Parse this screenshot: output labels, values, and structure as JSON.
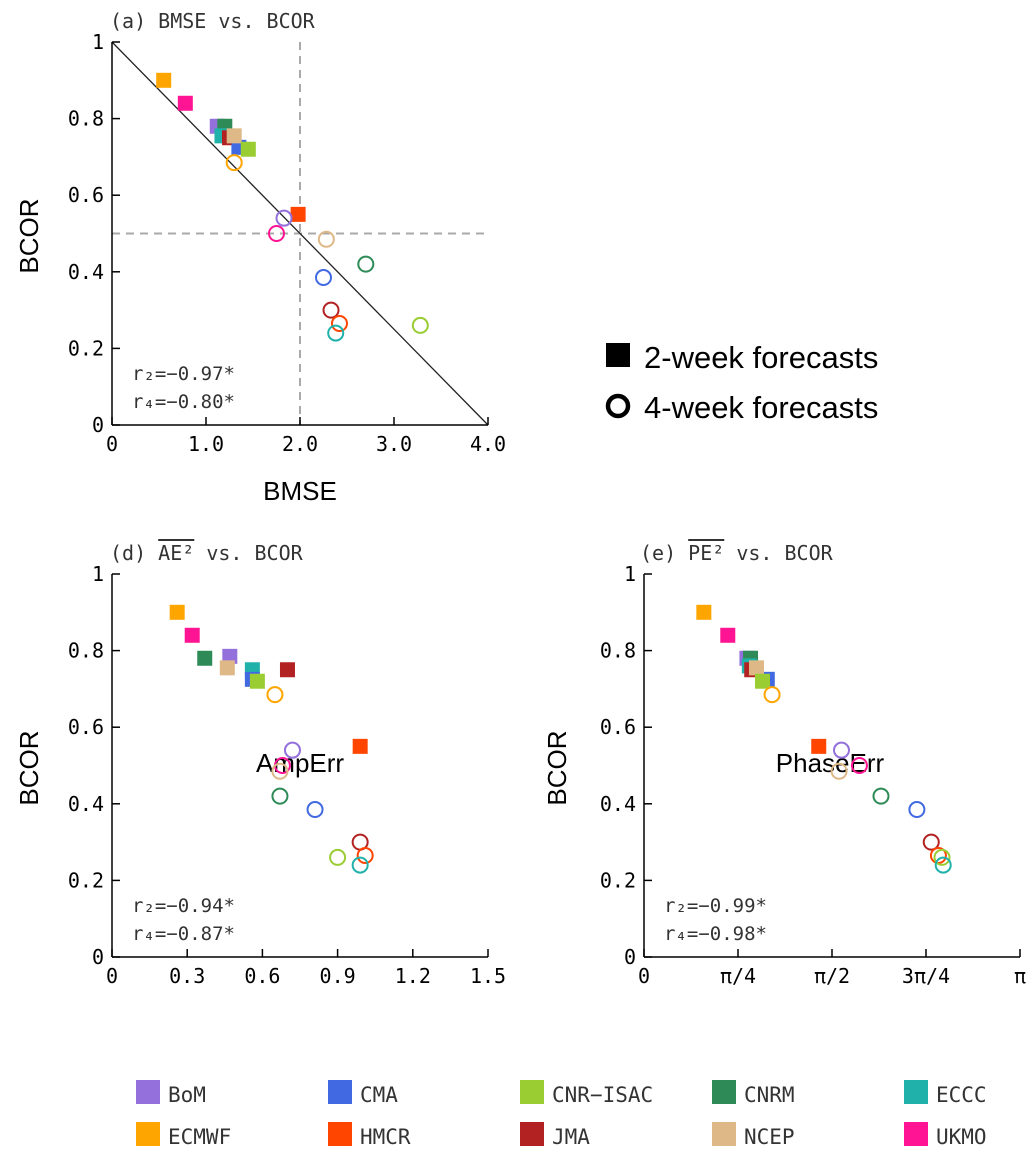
{
  "colors": {
    "BoM": "#9370DB",
    "CMA": "#4169E1",
    "CNR-ISAC": "#9ACD32",
    "CNRM": "#2E8B57",
    "ECCC": "#20B2AA",
    "ECMWF": "#FFA500",
    "HMCR": "#FF4500",
    "JMA": "#B22222",
    "NCEP": "#DEB887",
    "UKMO": "#FF1493"
  },
  "legend": {
    "markers": {
      "two_week": "2-week forecasts",
      "four_week": "4-week forecasts"
    },
    "models": [
      "BoM",
      "CMA",
      "CNR−ISAC",
      "CNRM",
      "ECCC",
      "ECMWF",
      "HMCR",
      "JMA",
      "NCEP",
      "UKMO"
    ],
    "model_keys": [
      "BoM",
      "CMA",
      "CNR-ISAC",
      "CNRM",
      "ECCC",
      "ECMWF",
      "HMCR",
      "JMA",
      "NCEP",
      "UKMO"
    ]
  },
  "chart_data": [
    {
      "id": "a",
      "type": "scatter",
      "title": "(a) BMSE vs. BCOR",
      "xlabel": "BMSE",
      "ylabel": "BCOR",
      "xlim": [
        0,
        4
      ],
      "ylim": [
        0,
        1
      ],
      "xticks": [
        0,
        1,
        2,
        3,
        4
      ],
      "xtick_labels": [
        "0",
        "1.0",
        "2.0",
        "3.0",
        "4.0"
      ],
      "yticks": [
        0,
        0.2,
        0.4,
        0.6,
        0.8,
        1
      ],
      "ytick_labels": [
        "0",
        "0.2",
        "0.4",
        "0.6",
        "0.8",
        "1"
      ],
      "reference_lines": {
        "diagonal": true,
        "vline_x": 2.0,
        "hline_y": 0.5
      },
      "stats": {
        "r2": "r₂=−0.97*",
        "r4": "r₄=−0.80*"
      },
      "series": [
        {
          "name": "2-week forecasts",
          "marker": "square",
          "points": [
            {
              "model": "ECMWF",
              "x": 0.55,
              "y": 0.9
            },
            {
              "model": "UKMO",
              "x": 0.78,
              "y": 0.84
            },
            {
              "model": "BoM",
              "x": 1.12,
              "y": 0.78
            },
            {
              "model": "CNRM",
              "x": 1.2,
              "y": 0.78
            },
            {
              "model": "ECCC",
              "x": 1.17,
              "y": 0.755
            },
            {
              "model": "JMA",
              "x": 1.25,
              "y": 0.75
            },
            {
              "model": "CMA",
              "x": 1.35,
              "y": 0.725
            },
            {
              "model": "NCEP",
              "x": 1.3,
              "y": 0.755
            },
            {
              "model": "CNR-ISAC",
              "x": 1.45,
              "y": 0.72
            },
            {
              "model": "HMCR",
              "x": 1.98,
              "y": 0.55
            }
          ]
        },
        {
          "name": "4-week forecasts",
          "marker": "circle",
          "points": [
            {
              "model": "ECMWF",
              "x": 1.3,
              "y": 0.685
            },
            {
              "model": "BoM",
              "x": 1.83,
              "y": 0.54
            },
            {
              "model": "UKMO",
              "x": 1.75,
              "y": 0.5
            },
            {
              "model": "NCEP",
              "x": 2.28,
              "y": 0.485
            },
            {
              "model": "CNRM",
              "x": 2.7,
              "y": 0.42
            },
            {
              "model": "CMA",
              "x": 2.25,
              "y": 0.385
            },
            {
              "model": "JMA",
              "x": 2.33,
              "y": 0.3
            },
            {
              "model": "HMCR",
              "x": 2.42,
              "y": 0.265
            },
            {
              "model": "ECCC",
              "x": 2.38,
              "y": 0.24
            },
            {
              "model": "CNR-ISAC",
              "x": 3.28,
              "y": 0.26
            }
          ]
        }
      ]
    },
    {
      "id": "d",
      "type": "scatter",
      "title": "(d) AE² vs. BCOR",
      "title_prefix": "(d) ",
      "title_overlined": "AE²",
      "title_suffix": " vs. BCOR",
      "xlabel": "AmpErr",
      "ylabel": "BCOR",
      "xlim": [
        0,
        1.5
      ],
      "ylim": [
        0,
        1
      ],
      "xticks": [
        0,
        0.3,
        0.6,
        0.9,
        1.2,
        1.5
      ],
      "xtick_labels": [
        "0",
        "0.3",
        "0.6",
        "0.9",
        "1.2",
        "1.5"
      ],
      "yticks": [
        0,
        0.2,
        0.4,
        0.6,
        0.8,
        1
      ],
      "ytick_labels": [
        "0",
        "0.2",
        "0.4",
        "0.6",
        "0.8",
        "1"
      ],
      "stats": {
        "r2": "r₂=−0.94*",
        "r4": "r₄=−0.87*"
      },
      "series": [
        {
          "name": "2-week forecasts",
          "marker": "square",
          "points": [
            {
              "model": "ECMWF",
              "x": 0.26,
              "y": 0.9
            },
            {
              "model": "UKMO",
              "x": 0.32,
              "y": 0.84
            },
            {
              "model": "CNRM",
              "x": 0.37,
              "y": 0.78
            },
            {
              "model": "BoM",
              "x": 0.47,
              "y": 0.785
            },
            {
              "model": "NCEP",
              "x": 0.46,
              "y": 0.755
            },
            {
              "model": "ECCC",
              "x": 0.56,
              "y": 0.75
            },
            {
              "model": "CMA",
              "x": 0.56,
              "y": 0.725
            },
            {
              "model": "CNR-ISAC",
              "x": 0.58,
              "y": 0.72
            },
            {
              "model": "JMA",
              "x": 0.7,
              "y": 0.75
            },
            {
              "model": "HMCR",
              "x": 0.99,
              "y": 0.55
            }
          ]
        },
        {
          "name": "4-week forecasts",
          "marker": "circle",
          "points": [
            {
              "model": "ECMWF",
              "x": 0.65,
              "y": 0.685
            },
            {
              "model": "BoM",
              "x": 0.72,
              "y": 0.54
            },
            {
              "model": "UKMO",
              "x": 0.68,
              "y": 0.5
            },
            {
              "model": "NCEP",
              "x": 0.67,
              "y": 0.485
            },
            {
              "model": "CNRM",
              "x": 0.67,
              "y": 0.42
            },
            {
              "model": "CMA",
              "x": 0.81,
              "y": 0.385
            },
            {
              "model": "CNR-ISAC",
              "x": 0.9,
              "y": 0.26
            },
            {
              "model": "JMA",
              "x": 0.99,
              "y": 0.3
            },
            {
              "model": "HMCR",
              "x": 1.01,
              "y": 0.265
            },
            {
              "model": "ECCC",
              "x": 0.99,
              "y": 0.24
            }
          ]
        }
      ]
    },
    {
      "id": "e",
      "type": "scatter",
      "title": "(e) PE² vs. BCOR",
      "title_prefix": "(e) ",
      "title_overlined": "PE²",
      "title_suffix": " vs. BCOR",
      "xlabel": "PhaseErr",
      "ylabel": "BCOR",
      "xlim": [
        0,
        3.14159
      ],
      "ylim": [
        0,
        1
      ],
      "xticks": [
        0,
        0.7854,
        1.5708,
        2.3562,
        3.14159
      ],
      "xtick_labels": [
        "0",
        "π/4",
        "π/2",
        "3π/4",
        "π"
      ],
      "yticks": [
        0,
        0.2,
        0.4,
        0.6,
        0.8,
        1
      ],
      "ytick_labels": [
        "0",
        "0.2",
        "0.4",
        "0.6",
        "0.8",
        "1"
      ],
      "stats": {
        "r2": "r₂=−0.99*",
        "r4": "r₄=−0.98*"
      },
      "series": [
        {
          "name": "2-week forecasts",
          "marker": "square",
          "points": [
            {
              "model": "ECMWF",
              "x": 0.5,
              "y": 0.9
            },
            {
              "model": "UKMO",
              "x": 0.7,
              "y": 0.84
            },
            {
              "model": "BoM",
              "x": 0.86,
              "y": 0.78
            },
            {
              "model": "CNRM",
              "x": 0.89,
              "y": 0.78
            },
            {
              "model": "ECCC",
              "x": 0.88,
              "y": 0.76
            },
            {
              "model": "JMA",
              "x": 0.9,
              "y": 0.75
            },
            {
              "model": "CMA",
              "x": 1.03,
              "y": 0.725
            },
            {
              "model": "NCEP",
              "x": 0.94,
              "y": 0.755
            },
            {
              "model": "CNR-ISAC",
              "x": 0.99,
              "y": 0.72
            },
            {
              "model": "HMCR",
              "x": 1.46,
              "y": 0.55
            }
          ]
        },
        {
          "name": "4-week forecasts",
          "marker": "circle",
          "points": [
            {
              "model": "ECMWF",
              "x": 1.07,
              "y": 0.685
            },
            {
              "model": "BoM",
              "x": 1.65,
              "y": 0.54
            },
            {
              "model": "NCEP",
              "x": 1.63,
              "y": 0.485
            },
            {
              "model": "UKMO",
              "x": 1.8,
              "y": 0.5
            },
            {
              "model": "CNRM",
              "x": 1.98,
              "y": 0.42
            },
            {
              "model": "CMA",
              "x": 2.28,
              "y": 0.385
            },
            {
              "model": "JMA",
              "x": 2.4,
              "y": 0.3
            },
            {
              "model": "HMCR",
              "x": 2.46,
              "y": 0.265
            },
            {
              "model": "CNR-ISAC",
              "x": 2.49,
              "y": 0.26
            },
            {
              "model": "ECCC",
              "x": 2.5,
              "y": 0.24
            }
          ]
        }
      ]
    }
  ]
}
